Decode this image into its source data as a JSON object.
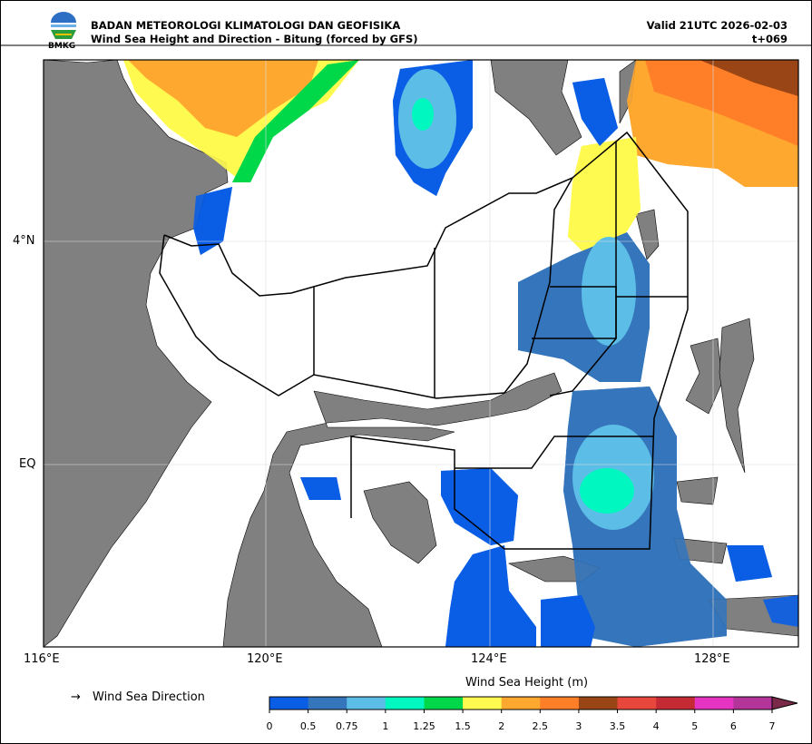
{
  "header": {
    "agency": "BADAN METEOROLOGI KLIMATOLOGI DAN GEOFISIKA",
    "title": "Wind Sea Height and Direction - Bitung (forced by GFS)",
    "valid": "Valid 21UTC 2026-02-03",
    "lead": "t+069",
    "logo_text": "BMKG"
  },
  "map": {
    "lat_labels": [
      "4°N",
      "EQ"
    ],
    "lon_labels": [
      "116°E",
      "120°E",
      "124°E",
      "128°E"
    ],
    "colors": {
      "land": "#808080",
      "sea": "#ffffff",
      "boundary": "#000000"
    }
  },
  "legend": {
    "direction_icon": "arrow-right",
    "direction_label": "Wind Sea Direction",
    "colorbar_title": "Wind Sea Height (m)",
    "ticks": [
      "0",
      "0.5",
      "0.75",
      "1",
      "1.25",
      "1.5",
      "2",
      "2.5",
      "3",
      "3.5",
      "4",
      "5",
      "6",
      "7"
    ],
    "colors": [
      "#0a5ee6",
      "#3575bb",
      "#5cbde6",
      "#00f8c0",
      "#00d84a",
      "#fffa50",
      "#ffa830",
      "#ff7e28",
      "#9a4515",
      "#e8473c",
      "#c42b35",
      "#e634c2",
      "#b3359a",
      "#7a2a48"
    ]
  }
}
